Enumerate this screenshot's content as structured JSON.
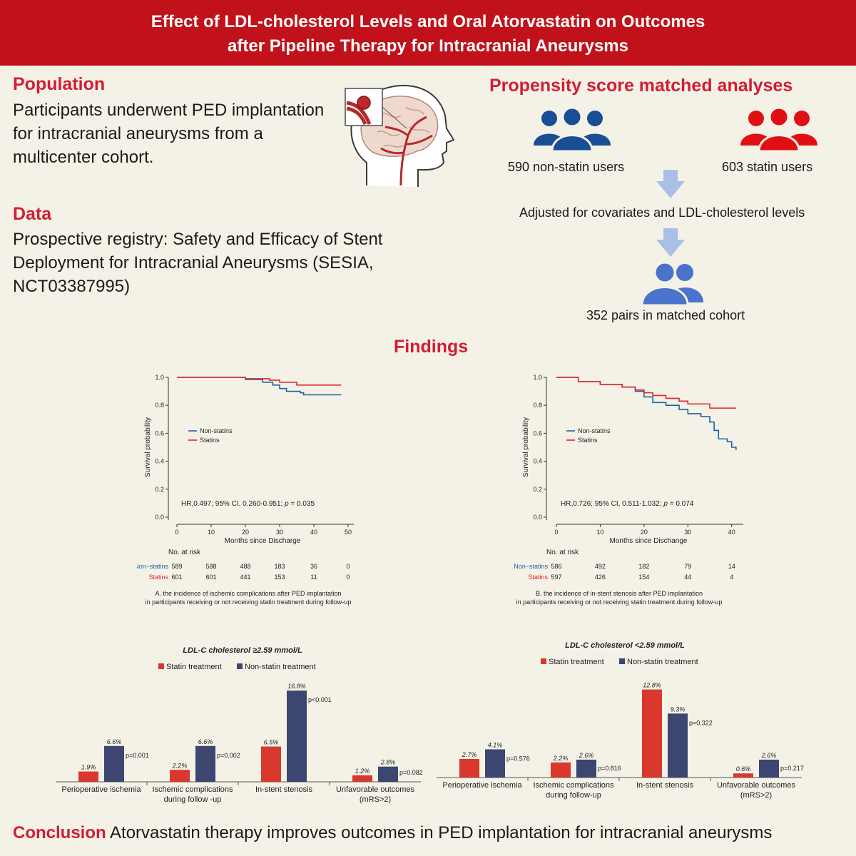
{
  "banner": {
    "line1": "Effect of LDL-cholesterol Levels and Oral Atorvastatin on Outcomes",
    "line2": "after Pipeline Therapy for Intracranial Aneurysms"
  },
  "population": {
    "heading": "Population",
    "text": "Participants underwent PED implantation for intracranial aneurysms from a multicenter cohort."
  },
  "data_section": {
    "heading": "Data",
    "text": "Prospective registry: Safety and Efficacy of Stent Deployment for Intracranial Aneurysms (SESIA, NCT03387995)"
  },
  "propensity": {
    "heading": "Propensity score matched analyses",
    "non_statin": "590 non-statin users",
    "statin": "603 statin users",
    "adjusted": "Adjusted for covariates and LDL-cholesterol levels",
    "matched": "352 pairs in matched cohort"
  },
  "findings": {
    "heading": "Findings"
  },
  "conclusion": {
    "label": "Conclusion",
    "text": "Atorvastatin therapy improves outcomes in PED implantation for intracranial aneurysms"
  },
  "colors": {
    "red": "#e0262d",
    "blue": "#1f5fa8",
    "navy": "#3c4670",
    "barred": "#d9382e",
    "accent": "#d41c35",
    "banner": "#c1121b"
  },
  "chart_data": [
    {
      "type": "line",
      "title": "",
      "xlabel": "Months since Discharge",
      "ylabel": "Survival probability",
      "xlim": [
        0,
        50
      ],
      "ylim": [
        0,
        1
      ],
      "xticks": [
        0,
        10,
        20,
        30,
        40,
        50
      ],
      "yticks": [
        "0.0",
        "0.2",
        "0.4",
        "0.6",
        "0.8",
        "1.0"
      ],
      "legend": [
        "Non-statins",
        "Statins"
      ],
      "series": [
        {
          "name": "Non-statins",
          "x": [
            0,
            17,
            20,
            25,
            28,
            30,
            32,
            36,
            37,
            48
          ],
          "y": [
            1.0,
            1.0,
            0.985,
            0.965,
            0.945,
            0.92,
            0.9,
            0.89,
            0.875,
            0.875
          ]
        },
        {
          "name": "Statins",
          "x": [
            0,
            17,
            20,
            27,
            30,
            35,
            48
          ],
          "y": [
            1.0,
            1.0,
            0.99,
            0.98,
            0.965,
            0.945,
            0.945
          ]
        }
      ],
      "stat_text": "HR,0.497; 95% CI, 0.260-0.951;",
      "p_label": "p",
      "p_value": "= 0.035",
      "risk_title": "No. at risk",
      "risk_rows": [
        {
          "label": "Non−statins",
          "values": [
            "589",
            "588",
            "488",
            "183",
            "36",
            "0"
          ]
        },
        {
          "label": "Statins",
          "values": [
            "601",
            "601",
            "441",
            "153",
            "11",
            "0"
          ]
        }
      ],
      "caption1": "A. the incidence of ischemic complications after PED implantation",
      "caption2": "in participants receiving or not receiving statin treatment during follow-up"
    },
    {
      "type": "line",
      "title": "",
      "xlabel": "Months since Dischange",
      "ylabel": "Survival probability",
      "xlim": [
        0,
        42
      ],
      "ylim": [
        0,
        1
      ],
      "xticks": [
        0,
        10,
        20,
        30,
        40
      ],
      "yticks": [
        "0.0",
        "0.2",
        "0.4",
        "0.6",
        "0.8",
        "1.0"
      ],
      "legend": [
        "Non-statins",
        "Statins"
      ],
      "series": [
        {
          "name": "Non-statins",
          "x": [
            0,
            5,
            10,
            15,
            18,
            20,
            22,
            25,
            28,
            30,
            33,
            35,
            36,
            37,
            39,
            40,
            41
          ],
          "y": [
            1.0,
            0.97,
            0.95,
            0.93,
            0.9,
            0.86,
            0.82,
            0.8,
            0.77,
            0.74,
            0.72,
            0.68,
            0.62,
            0.56,
            0.54,
            0.5,
            0.48
          ]
        },
        {
          "name": "Statins",
          "x": [
            0,
            5,
            10,
            15,
            18,
            20,
            22,
            25,
            28,
            30,
            34,
            35,
            41
          ],
          "y": [
            1.0,
            0.97,
            0.95,
            0.93,
            0.91,
            0.89,
            0.87,
            0.85,
            0.83,
            0.81,
            0.81,
            0.78,
            0.78
          ]
        }
      ],
      "stat_text": "HR,0.726; 95% CI, 0.511-1.032;",
      "p_label": "p",
      "p_value": "= 0.074",
      "risk_title": "No. at risk",
      "risk_rows": [
        {
          "label": "Non−statins",
          "values": [
            "586",
            "492",
            "182",
            "79",
            "14"
          ]
        },
        {
          "label": "Statins",
          "values": [
            "597",
            "426",
            "154",
            "44",
            "4"
          ]
        }
      ],
      "caption1": "B. the incidence of in-stent stenosis after PED implantation",
      "caption2": "in participants receiving or not receiving statin treatment during follow-up"
    },
    {
      "type": "bar",
      "title": "LDL-C cholesterol ≥2.59 mmol/L",
      "legend": [
        "Statin treatment",
        "Non-statin treatment"
      ],
      "categories": [
        [
          "Perioperative ischemia"
        ],
        [
          "Ischemic complications",
          "during follow -up"
        ],
        [
          "In-stent stenosis"
        ],
        [
          "Unfavorable outcomes",
          "(mRS>2)"
        ]
      ],
      "series": [
        {
          "name": "Statin treatment",
          "values": [
            1.9,
            2.2,
            6.5,
            1.2
          ],
          "labels": [
            "1.9%",
            "2.2%",
            "6.5%",
            "1.2%"
          ]
        },
        {
          "name": "Non-statin treatment",
          "values": [
            6.6,
            6.6,
            16.8,
            2.8
          ],
          "labels": [
            "6.6%",
            "6.6%",
            "16.8%",
            "2.8%"
          ]
        }
      ],
      "pvalues": [
        "p=0.001",
        "p=0.002",
        "p<0.001",
        "p=0.082"
      ],
      "ylim": [
        0,
        18
      ]
    },
    {
      "type": "bar",
      "title": "LDL-C cholesterol <2.59 mmol/L",
      "legend": [
        "Statin treatment",
        "Non-statin treatment"
      ],
      "categories": [
        [
          "Perioperative ischemia"
        ],
        [
          "Ischemic complications",
          "during follow-up"
        ],
        [
          "In-stent stenosis"
        ],
        [
          "Unfavorable outcomes",
          "(mRS>2)"
        ]
      ],
      "series": [
        {
          "name": "Statin treatment",
          "values": [
            2.7,
            2.2,
            12.8,
            0.6
          ],
          "labels": [
            "2.7%",
            "2.2%",
            "12.8%",
            "0.6%"
          ]
        },
        {
          "name": "Non-statin treatment",
          "values": [
            4.1,
            2.6,
            9.3,
            2.6
          ],
          "labels": [
            "4.1%",
            "2.6%",
            "9.3%",
            "2.6%"
          ]
        }
      ],
      "pvalues": [
        "p=0.576",
        "p=0.816",
        "p=0.322",
        "p=0.217"
      ],
      "ylim": [
        0,
        14
      ]
    }
  ]
}
